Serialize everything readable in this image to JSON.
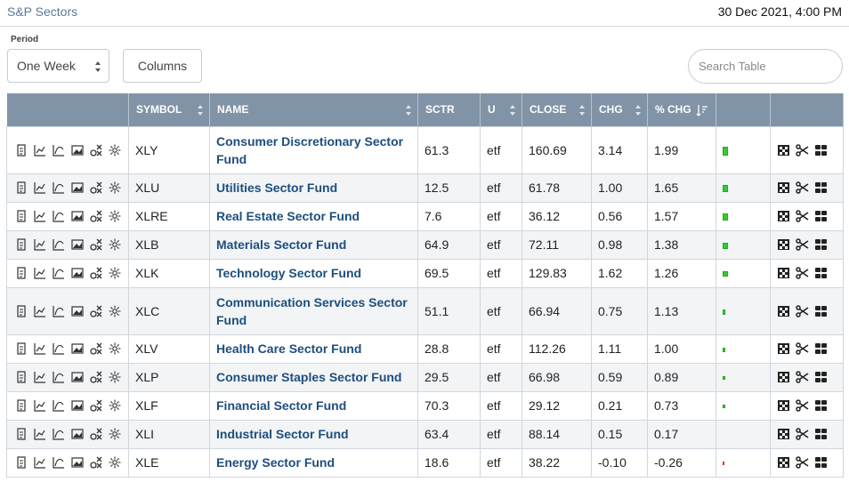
{
  "header": {
    "title": "S&P Sectors",
    "timestamp": "30 Dec 2021, 4:00 PM"
  },
  "controls": {
    "period_label": "Period",
    "period_value": "One Week",
    "columns_label": "Columns",
    "search_placeholder": "Search Table"
  },
  "table": {
    "columns": [
      "",
      "SYMBOL",
      "NAME",
      "SCTR",
      "U",
      "CLOSE",
      "CHG",
      "% CHG",
      "",
      ""
    ],
    "rows": [
      {
        "symbol": "XLY",
        "name": "Consumer Discretionary Sector Fund",
        "sctr": "61.3",
        "u": "etf",
        "close": "160.69",
        "chg": "3.14",
        "pchg": "1.99",
        "bar": 1.99
      },
      {
        "symbol": "XLU",
        "name": "Utilities Sector Fund",
        "sctr": "12.5",
        "u": "etf",
        "close": "61.78",
        "chg": "1.00",
        "pchg": "1.65",
        "bar": 1.65
      },
      {
        "symbol": "XLRE",
        "name": "Real Estate Sector Fund",
        "sctr": "7.6",
        "u": "etf",
        "close": "36.12",
        "chg": "0.56",
        "pchg": "1.57",
        "bar": 1.57
      },
      {
        "symbol": "XLB",
        "name": "Materials Sector Fund",
        "sctr": "64.9",
        "u": "etf",
        "close": "72.11",
        "chg": "0.98",
        "pchg": "1.38",
        "bar": 1.38
      },
      {
        "symbol": "XLK",
        "name": "Technology Sector Fund",
        "sctr": "69.5",
        "u": "etf",
        "close": "129.83",
        "chg": "1.62",
        "pchg": "1.26",
        "bar": 1.26
      },
      {
        "symbol": "XLC",
        "name": "Communication Services Sector Fund",
        "sctr": "51.1",
        "u": "etf",
        "close": "66.94",
        "chg": "0.75",
        "pchg": "1.13",
        "bar": 1.13
      },
      {
        "symbol": "XLV",
        "name": "Health Care Sector Fund",
        "sctr": "28.8",
        "u": "etf",
        "close": "112.26",
        "chg": "1.11",
        "pchg": "1.00",
        "bar": 1.0
      },
      {
        "symbol": "XLP",
        "name": "Consumer Staples Sector Fund",
        "sctr": "29.5",
        "u": "etf",
        "close": "66.98",
        "chg": "0.59",
        "pchg": "0.89",
        "bar": 0.89
      },
      {
        "symbol": "XLF",
        "name": "Financial Sector Fund",
        "sctr": "70.3",
        "u": "etf",
        "close": "29.12",
        "chg": "0.21",
        "pchg": "0.73",
        "bar": 0.73
      },
      {
        "symbol": "XLI",
        "name": "Industrial Sector Fund",
        "sctr": "63.4",
        "u": "etf",
        "close": "88.14",
        "chg": "0.15",
        "pchg": "0.17",
        "bar": 0.17
      },
      {
        "symbol": "XLE",
        "name": "Energy Sector Fund",
        "sctr": "18.6",
        "u": "etf",
        "close": "38.22",
        "chg": "-0.10",
        "pchg": "-0.26",
        "bar": -0.26
      }
    ]
  },
  "icons": {
    "row_tools": [
      "document-icon",
      "line-chart-icon",
      "candlestick-chart-icon",
      "image-chart-icon",
      "point-figure-icon",
      "seasonality-icon"
    ],
    "row_actions": [
      "checkers-icon",
      "scissors-icon",
      "grid-icon"
    ]
  },
  "colors": {
    "header_bg": "#8193a6",
    "link": "#1d4e7e",
    "positive_bar": "#33cc33",
    "negative_bar": "#dd3333"
  }
}
